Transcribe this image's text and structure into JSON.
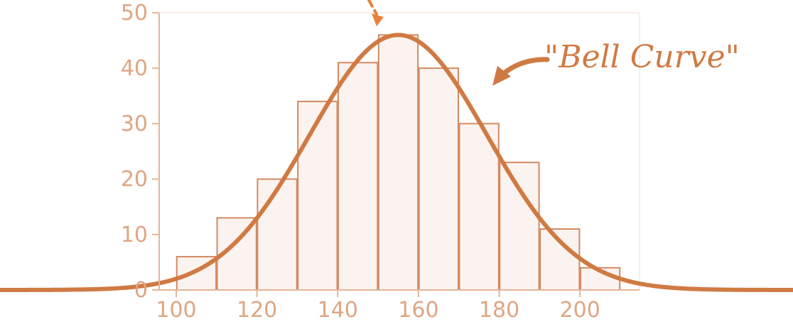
{
  "chart_data": {
    "type": "bar",
    "bins": [
      {
        "start": 100,
        "end": 110,
        "value": 6
      },
      {
        "start": 110,
        "end": 120,
        "value": 13
      },
      {
        "start": 120,
        "end": 130,
        "value": 20
      },
      {
        "start": 130,
        "end": 140,
        "value": 34
      },
      {
        "start": 140,
        "end": 150,
        "value": 41
      },
      {
        "start": 150,
        "end": 160,
        "value": 46
      },
      {
        "start": 160,
        "end": 170,
        "value": 40
      },
      {
        "start": 170,
        "end": 180,
        "value": 30
      },
      {
        "start": 180,
        "end": 190,
        "value": 23
      },
      {
        "start": 190,
        "end": 200,
        "value": 11
      },
      {
        "start": 200,
        "end": 210,
        "value": 4
      }
    ],
    "x_ticks": [
      "100",
      "120",
      "140",
      "160",
      "180",
      "200"
    ],
    "y_ticks": [
      "0",
      "10",
      "20",
      "30",
      "40",
      "50"
    ],
    "xlim": [
      100,
      210
    ],
    "ylim": [
      0,
      50
    ],
    "grid": false,
    "curve": {
      "type": "normal",
      "mean": 155,
      "sd": 22,
      "peak": 46
    },
    "annotation": "\"Bell Curve\"",
    "colors": {
      "bar_fill": "#fbf3ef",
      "bar_stroke": "#d28a61",
      "curve": "#d07a43",
      "axis": "#e3b597",
      "tick_text": "#dfa583",
      "arrow": "#d07a43",
      "dashed_arrow": "#e8823a"
    }
  }
}
